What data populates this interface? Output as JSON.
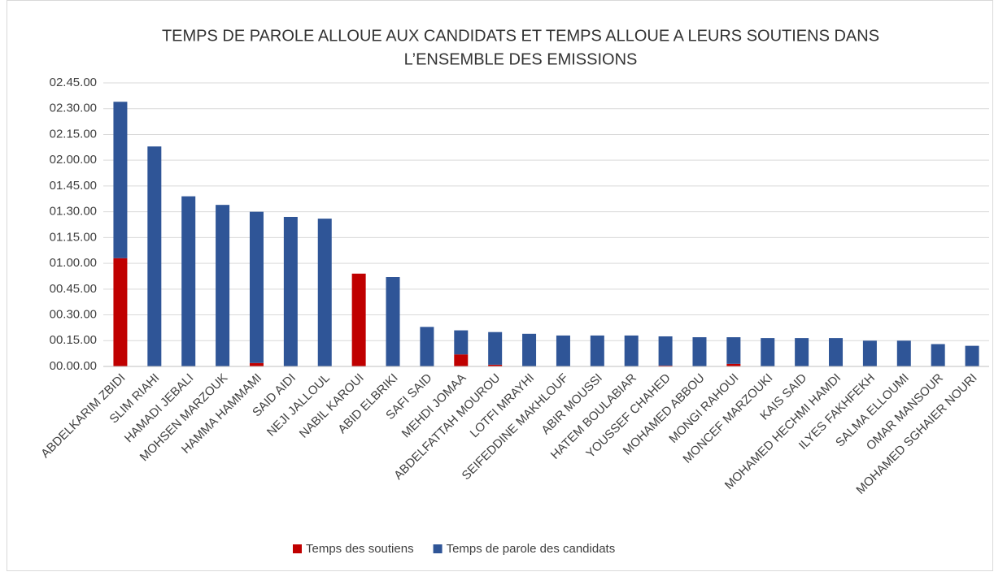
{
  "chart_data": {
    "type": "stacked_bar",
    "title": [
      "TEMPS DE PAROLE ALLOUE AUX CANDIDATS ET TEMPS ALLOUE A LEURS SOUTIENS DANS",
      "L’ENSEMBLE DES EMISSIONS"
    ],
    "categories": [
      "ABDELKARIM ZBIDI",
      "SLIM RIAHI",
      "HAMADI JEBALI",
      "MOHSEN MARZOUK",
      "HAMMA HAMMAMI",
      "SAID AIDI",
      "NEJI JALLOUL",
      "NABIL KAROUI",
      "ABID ELBRIKI",
      "SAFI SAID",
      "MEHDI JOMAA",
      "ABDELFATTAH MOUROU",
      "LOTFI MRAYHI",
      "SEIFEDDINE MAKHLOUF",
      "ABIR MOUSSI",
      "HATEM BOULABIAR",
      "YOUSSEF CHAHED",
      "MOHAMED ABBOU",
      "MONGI RAHOUI",
      "MONCEF MARZOUKI",
      "KAIS SAID",
      "MOHAMED HECHMI HAMDI",
      "ILYES FAKHFEKH",
      "SALMA ELLOUMI",
      "OMAR MANSOUR",
      "MOHAMED SGHAIER NOURI"
    ],
    "series": [
      {
        "name": "Temps des soutiens",
        "color": "#c00000",
        "values": [
          63,
          0,
          0,
          0,
          2,
          0,
          0,
          54,
          0,
          0,
          7,
          1,
          0,
          0,
          0,
          0,
          0.5,
          0,
          1.5,
          0,
          0,
          0,
          0,
          0,
          0,
          0
        ]
      },
      {
        "name": "Temps de parole des candidats",
        "color": "#2f5597",
        "values": [
          91,
          128,
          99,
          94,
          88,
          87,
          86,
          0,
          52,
          23,
          14,
          19,
          19,
          18,
          18,
          18,
          17,
          17,
          15.5,
          16.5,
          16.5,
          16.5,
          15,
          15,
          13,
          12
        ]
      }
    ],
    "ylim": [
      0,
      165
    ],
    "yticks": [
      {
        "value": 0,
        "label": "00.00.00"
      },
      {
        "value": 15,
        "label": "00.15.00"
      },
      {
        "value": 30,
        "label": "00.30.00"
      },
      {
        "value": 45,
        "label": "00.45.00"
      },
      {
        "value": 60,
        "label": "01.00.00"
      },
      {
        "value": 75,
        "label": "01.15.00"
      },
      {
        "value": 90,
        "label": "01.30.00"
      },
      {
        "value": 105,
        "label": "01.45.00"
      },
      {
        "value": 120,
        "label": "02.00.00"
      },
      {
        "value": 135,
        "label": "02.15.00"
      },
      {
        "value": 150,
        "label": "02.30.00"
      },
      {
        "value": 165,
        "label": "02.45.00"
      }
    ],
    "grid": true,
    "legend": "bottom"
  }
}
